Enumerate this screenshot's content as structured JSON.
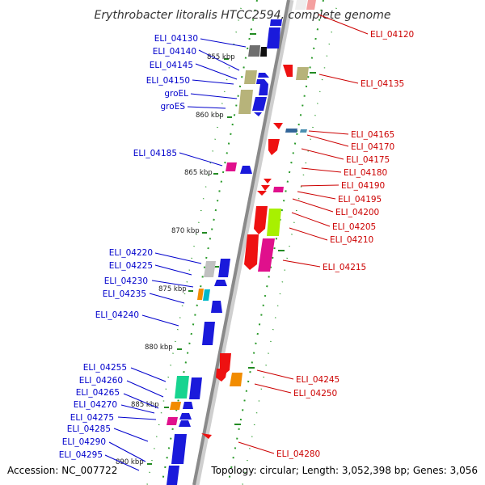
{
  "title": "Erythrobacter litoralis HTCC2594, complete genome",
  "accession": "Accession: NC_007722",
  "summary": "Topology: circular; Length: 3,052,398 bp; Genes: 3,056",
  "colors": {
    "forward_label": "#0000cc",
    "reverse_label": "#cc0000",
    "backbone": "#888888",
    "track_dots": "#228b22"
  },
  "kbp_ticks": [
    "855 kbp",
    "860 kbp",
    "865 kbp",
    "870 kbp",
    "875 kbp",
    "880 kbp",
    "885 kbp",
    "890 kbp"
  ],
  "left_genes": [
    "ELI_04130",
    "ELI_04140",
    "ELI_04145",
    "ELI_04150",
    "groEL",
    "groES",
    "ELI_04185",
    "ELI_04220",
    "ELI_04225",
    "ELI_04230",
    "ELI_04235",
    "ELI_04240",
    "ELI_04255",
    "ELI_04260",
    "ELI_04265",
    "ELI_04270",
    "ELI_04275",
    "ELI_04285",
    "ELI_04290",
    "ELI_04295"
  ],
  "right_genes": [
    "ELI_04120",
    "ELI_04135",
    "ELI_04165",
    "ELI_04170",
    "ELI_04175",
    "ELI_04180",
    "ELI_04190",
    "ELI_04195",
    "ELI_04200",
    "ELI_04205",
    "ELI_04210",
    "ELI_04215",
    "ELI_04245",
    "ELI_04250",
    "ELI_04280"
  ]
}
